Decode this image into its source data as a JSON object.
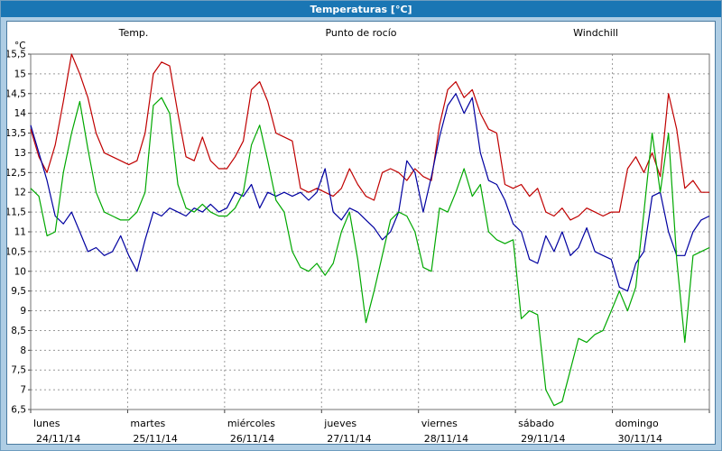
{
  "window": {
    "title": "Temperaturas [°C]"
  },
  "chart_data": {
    "type": "line",
    "title": "Temperaturas [°C]",
    "ylabel": "°C",
    "ylim": [
      6.5,
      15.5
    ],
    "ytick_step": 0.5,
    "grid": "dashed",
    "legend_position": "top",
    "days": [
      {
        "name": "lunes",
        "date": "24/11/14"
      },
      {
        "name": "martes",
        "date": "25/11/14"
      },
      {
        "name": "miércoles",
        "date": "26/11/14"
      },
      {
        "name": "jueves",
        "date": "27/11/14"
      },
      {
        "name": "viernes",
        "date": "28/11/14"
      },
      {
        "name": "sábado",
        "date": "29/11/14"
      },
      {
        "name": "domingo",
        "date": "30/11/14"
      }
    ],
    "points_per_day": 12,
    "series": [
      {
        "name": "Temp.",
        "color": "#c00000",
        "values": [
          13.6,
          12.9,
          12.5,
          13.2,
          14.3,
          15.5,
          15.0,
          14.4,
          13.5,
          13.0,
          12.9,
          12.8,
          12.7,
          12.8,
          13.5,
          15.0,
          15.3,
          15.2,
          14.0,
          12.9,
          12.8,
          13.4,
          12.8,
          12.6,
          12.6,
          12.9,
          13.3,
          14.6,
          14.8,
          14.3,
          13.5,
          13.4,
          13.3,
          12.1,
          12.0,
          12.1,
          12.0,
          11.9,
          12.1,
          12.6,
          12.2,
          11.9,
          11.8,
          12.5,
          12.6,
          12.5,
          12.3,
          12.6,
          12.4,
          12.3,
          13.7,
          14.6,
          14.8,
          14.4,
          14.6,
          14.0,
          13.6,
          13.5,
          12.2,
          12.1,
          12.2,
          11.9,
          12.1,
          11.5,
          11.4,
          11.6,
          11.3,
          11.4,
          11.6,
          11.5,
          11.4,
          11.5,
          11.5,
          12.6,
          12.9,
          12.5,
          13.0,
          12.4,
          14.5,
          13.6,
          12.1,
          12.3,
          12.0,
          12.0
        ]
      },
      {
        "name": "Punto de rocío",
        "color": "#0000a0",
        "values": [
          13.7,
          13.0,
          12.3,
          11.4,
          11.2,
          11.5,
          11.0,
          10.5,
          10.6,
          10.4,
          10.5,
          10.9,
          10.4,
          10.0,
          10.8,
          11.5,
          11.4,
          11.6,
          11.5,
          11.4,
          11.6,
          11.5,
          11.7,
          11.5,
          11.6,
          12.0,
          11.9,
          12.2,
          11.6,
          12.0,
          11.9,
          12.0,
          11.9,
          12.0,
          11.8,
          12.0,
          12.6,
          11.5,
          11.3,
          11.6,
          11.5,
          11.3,
          11.1,
          10.8,
          11.0,
          11.5,
          12.8,
          12.5,
          11.5,
          12.4,
          13.4,
          14.2,
          14.5,
          14.0,
          14.4,
          13.0,
          12.3,
          12.2,
          11.8,
          11.2,
          11.0,
          10.3,
          10.2,
          10.9,
          10.5,
          11.0,
          10.4,
          10.6,
          11.1,
          10.5,
          10.4,
          10.3,
          9.6,
          9.5,
          10.2,
          10.5,
          11.9,
          12.0,
          11.0,
          10.4,
          10.4,
          11.0,
          11.3,
          11.4
        ]
      },
      {
        "name": "Windchill",
        "color": "#00a800",
        "values": [
          12.1,
          11.9,
          10.9,
          11.0,
          12.5,
          13.5,
          14.3,
          13.1,
          12.0,
          11.5,
          11.4,
          11.3,
          11.3,
          11.5,
          12.0,
          14.2,
          14.4,
          14.0,
          12.2,
          11.6,
          11.5,
          11.7,
          11.5,
          11.4,
          11.4,
          11.6,
          12.0,
          13.2,
          13.7,
          12.8,
          11.8,
          11.5,
          10.5,
          10.1,
          10.0,
          10.2,
          9.9,
          10.2,
          11.0,
          11.5,
          10.3,
          8.7,
          9.5,
          10.4,
          11.3,
          11.5,
          11.4,
          11.0,
          10.1,
          10.0,
          11.6,
          11.5,
          12.0,
          12.6,
          11.9,
          12.2,
          11.0,
          10.8,
          10.7,
          10.8,
          8.8,
          9.0,
          8.9,
          7.0,
          6.6,
          6.7,
          7.5,
          8.3,
          8.2,
          8.4,
          8.5,
          9.0,
          9.5,
          9.0,
          9.6,
          11.5,
          13.5,
          12.0,
          13.5,
          10.3,
          8.2,
          10.4,
          10.5,
          10.6
        ]
      }
    ]
  }
}
